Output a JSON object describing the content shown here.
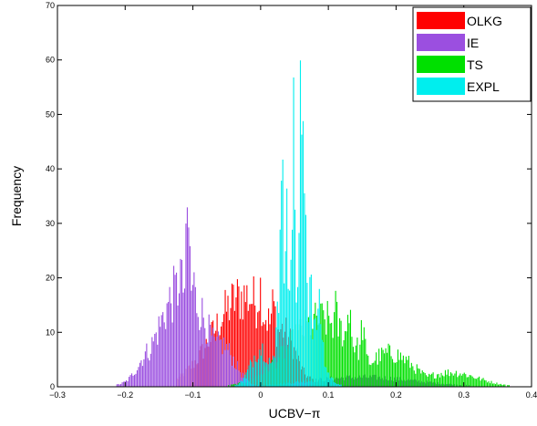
{
  "chart_data": {
    "type": "bar",
    "subtype": "overlaid-histogram",
    "title": "",
    "xlabel": "UCBV−π",
    "ylabel": "Frequency",
    "xlim": [
      -0.3,
      0.4
    ],
    "ylim": [
      0,
      70
    ],
    "x_ticks": [
      -0.3,
      -0.2,
      -0.1,
      0,
      0.1,
      0.2,
      0.3,
      0.4
    ],
    "x_tick_labels": [
      "−0.3",
      "−0.2",
      "−0.1",
      "0",
      "0.1",
      "0.2",
      "0.3",
      "0.4"
    ],
    "y_ticks": [
      0,
      10,
      20,
      30,
      40,
      50,
      60,
      70
    ],
    "y_tick_labels": [
      "0",
      "10",
      "20",
      "30",
      "40",
      "50",
      "60",
      "70"
    ],
    "grid": false,
    "legend_position": "top-right",
    "series": [
      {
        "name": "OLKG",
        "color": "#ff0000",
        "range": [
          -0.125,
          0.35
        ],
        "peaks": [
          {
            "x": -0.025,
            "y": 19,
            "w": 0.045
          },
          {
            "x": -0.002,
            "y": 21,
            "w": 0.006
          },
          {
            "x": -0.045,
            "y": 16,
            "w": 0.006
          },
          {
            "x": 0.018,
            "y": 17,
            "w": 0.006
          },
          {
            "x": 0.03,
            "y": 12,
            "w": 0.02
          }
        ]
      },
      {
        "name": "IE",
        "color": "#9b4fe0",
        "range": [
          -0.235,
          0.33
        ],
        "peaks": [
          {
            "x": -0.115,
            "y": 21,
            "w": 0.035
          },
          {
            "x": -0.108,
            "y": 35,
            "w": 0.004
          },
          {
            "x": -0.12,
            "y": 25,
            "w": 0.004
          },
          {
            "x": -0.1,
            "y": 22,
            "w": 0.004
          },
          {
            "x": -0.16,
            "y": 8,
            "w": 0.02
          },
          {
            "x": -0.06,
            "y": 9,
            "w": 0.02
          },
          {
            "x": 0.15,
            "y": 2,
            "w": 0.08
          }
        ]
      },
      {
        "name": "TS",
        "color": "#00e000",
        "range": [
          -0.1,
          0.38
        ],
        "peaks": [
          {
            "x": 0.09,
            "y": 14,
            "w": 0.05
          },
          {
            "x": 0.13,
            "y": 18,
            "w": 0.004
          },
          {
            "x": 0.11,
            "y": 16,
            "w": 0.004
          },
          {
            "x": 0.15,
            "y": 13,
            "w": 0.004
          },
          {
            "x": 0.19,
            "y": 7,
            "w": 0.035
          },
          {
            "x": 0.28,
            "y": 3,
            "w": 0.04
          }
        ]
      },
      {
        "name": "EXPL",
        "color": "#00eeee",
        "range": [
          -0.04,
          0.13
        ],
        "peaks": [
          {
            "x": 0.055,
            "y": 22,
            "w": 0.022
          },
          {
            "x": 0.031,
            "y": 59,
            "w": 0.0025
          },
          {
            "x": 0.059,
            "y": 61,
            "w": 0.0025
          },
          {
            "x": 0.048,
            "y": 52,
            "w": 0.0025
          },
          {
            "x": 0.044,
            "y": 38,
            "w": 0.0025
          },
          {
            "x": 0.063,
            "y": 47,
            "w": 0.0025
          },
          {
            "x": 0.066,
            "y": 35,
            "w": 0.0025
          },
          {
            "x": 0.038,
            "y": 33,
            "w": 0.0025
          },
          {
            "x": 0.073,
            "y": 26,
            "w": 0.0025
          },
          {
            "x": 0.025,
            "y": 23,
            "w": 0.0025
          },
          {
            "x": 0.085,
            "y": 16,
            "w": 0.006
          },
          {
            "x": 0.0,
            "y": 8,
            "w": 0.015
          }
        ]
      }
    ]
  }
}
